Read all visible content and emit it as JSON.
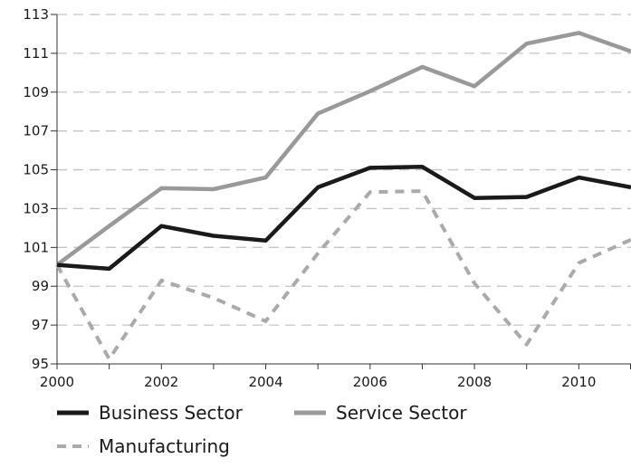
{
  "chart_data": {
    "type": "line",
    "x": [
      2000,
      2001,
      2002,
      2003,
      2004,
      2005,
      2006,
      2007,
      2008,
      2009,
      2010,
      2011
    ],
    "series": [
      {
        "name": "Business Sector",
        "color": "#1a1a1a",
        "dash": false,
        "values": [
          100.1,
          99.9,
          102.1,
          101.6,
          101.35,
          104.1,
          105.1,
          105.15,
          103.55,
          103.6,
          104.6,
          104.1
        ]
      },
      {
        "name": "Service Sector",
        "color": "#999999",
        "dash": false,
        "values": [
          100.1,
          102.1,
          104.05,
          104.0,
          104.6,
          107.9,
          109.05,
          110.3,
          109.3,
          111.5,
          112.05,
          111.1
        ]
      },
      {
        "name": "Manufacturing",
        "color": "#aaaaaa",
        "dash": true,
        "values": [
          100.1,
          95.25,
          99.3,
          98.4,
          97.2,
          100.7,
          103.85,
          103.9,
          99.15,
          96.0,
          100.2,
          101.4
        ]
      }
    ],
    "xticks": [
      "2000",
      "2002",
      "2004",
      "2006",
      "2008",
      "2010"
    ],
    "yticks": [
      "95",
      "97",
      "99",
      "101",
      "103",
      "105",
      "107",
      "109",
      "111",
      "113"
    ],
    "xlim": [
      2000,
      2011
    ],
    "ylim": [
      95,
      113
    ],
    "grid": "horizontal dashed",
    "legend_position": "bottom"
  }
}
